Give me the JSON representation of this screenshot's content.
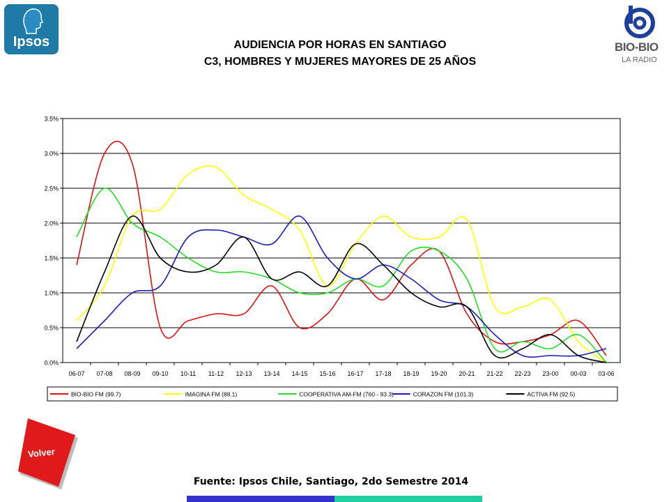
{
  "logos": {
    "ipsos": "Ipsos",
    "biobio": "BIO-BIO",
    "biobio_sub": "LA RADIO"
  },
  "header": {
    "title_line1": "AUDIENCIA POR HORAS EN SANTIAGO",
    "title_line2": "C3, HOMBRES Y MUJERES MAYORES DE 25 AÑOS"
  },
  "nav": {
    "volver_label": "Volver"
  },
  "footer": {
    "source": "Fuente: Ipsos Chile, Santiago, 2do Semestre 2014"
  },
  "chart_data": {
    "type": "line",
    "title": "",
    "xlabel": "",
    "ylabel": "",
    "ylim": [
      0,
      3.5
    ],
    "yticks": [
      "0.0%",
      "0.5%",
      "1.0%",
      "1.5%",
      "2.0%",
      "2.5%",
      "3.0%",
      "3.5%"
    ],
    "grid": true,
    "legend_position": "bottom",
    "categories": [
      "06-07",
      "07-08",
      "08-09",
      "09-10",
      "10-11",
      "11-12",
      "12-13",
      "13-14",
      "14-15",
      "15-16",
      "16-17",
      "17-18",
      "18-19",
      "19-20",
      "20-21",
      "21-22",
      "22-23",
      "23-00",
      "00-03",
      "03-06"
    ],
    "series": [
      {
        "name": "BIO-BIO FM (99.7)",
        "color": "#dd1111",
        "values": [
          1.4,
          3.0,
          2.85,
          0.5,
          0.6,
          0.7,
          0.7,
          1.1,
          0.5,
          0.7,
          1.2,
          0.9,
          1.4,
          1.6,
          0.7,
          0.3,
          0.3,
          0.4,
          0.6,
          0.1
        ]
      },
      {
        "name": "IMAGINA FM (88.1)",
        "color": "#ffff00",
        "values": [
          0.6,
          1.1,
          2.1,
          2.2,
          2.7,
          2.8,
          2.4,
          2.2,
          1.9,
          1.1,
          1.7,
          2.1,
          1.8,
          1.8,
          2.05,
          0.8,
          0.8,
          0.9,
          0.3,
          0.0
        ]
      },
      {
        "name": "COOPERATIVA AM-FM (760 - 93.3)",
        "color": "#22dd22",
        "values": [
          1.8,
          2.5,
          2.0,
          1.8,
          1.5,
          1.3,
          1.3,
          1.2,
          1.0,
          1.0,
          1.2,
          1.1,
          1.6,
          1.6,
          1.2,
          0.2,
          0.3,
          0.2,
          0.4,
          0.0
        ]
      },
      {
        "name": "CORAZON FM (101.3)",
        "color": "#1a1ab8",
        "values": [
          0.2,
          0.6,
          1.0,
          1.1,
          1.8,
          1.9,
          1.8,
          1.7,
          2.1,
          1.5,
          1.2,
          1.4,
          1.2,
          0.9,
          0.8,
          0.4,
          0.1,
          0.1,
          0.1,
          0.2
        ]
      },
      {
        "name": "ACTIVA FM (92.5)",
        "color": "#000000",
        "values": [
          0.3,
          1.3,
          2.1,
          1.5,
          1.3,
          1.4,
          1.8,
          1.2,
          1.3,
          1.1,
          1.7,
          1.4,
          1.0,
          0.8,
          0.8,
          0.1,
          0.2,
          0.4,
          0.1,
          0.0
        ]
      }
    ]
  }
}
